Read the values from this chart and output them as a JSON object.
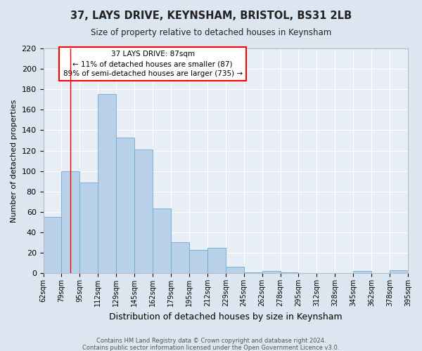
{
  "title": "37, LAYS DRIVE, KEYNSHAM, BRISTOL, BS31 2LB",
  "subtitle": "Size of property relative to detached houses in Keynsham",
  "xlabel": "Distribution of detached houses by size in Keynsham",
  "ylabel": "Number of detached properties",
  "categories": [
    "62sqm",
    "79sqm",
    "95sqm",
    "112sqm",
    "129sqm",
    "145sqm",
    "162sqm",
    "179sqm",
    "195sqm",
    "212sqm",
    "229sqm",
    "245sqm",
    "262sqm",
    "278sqm",
    "295sqm",
    "312sqm",
    "328sqm",
    "345sqm",
    "362sqm",
    "378sqm",
    "395sqm"
  ],
  "values": [
    55,
    100,
    89,
    175,
    133,
    121,
    63,
    30,
    23,
    25,
    6,
    1,
    2,
    1,
    0,
    0,
    0,
    2,
    0,
    3
  ],
  "bar_color": "#b8d0e8",
  "bar_edge_color": "#6aaad4",
  "background_color": "#e8eef6",
  "plot_bg_color": "#dce6f0",
  "grid_color": "#ffffff",
  "ylim": [
    0,
    220
  ],
  "yticks": [
    0,
    20,
    40,
    60,
    80,
    100,
    120,
    140,
    160,
    180,
    200,
    220
  ],
  "property_label": "37 LAYS DRIVE: 87sqm",
  "annotation_line1": "← 11% of detached houses are smaller (87)",
  "annotation_line2": "89% of semi-detached houses are larger (735) →",
  "footnote1": "Contains HM Land Registry data © Crown copyright and database right 2024.",
  "footnote2": "Contains public sector information licensed under the Open Government Licence v3.0."
}
